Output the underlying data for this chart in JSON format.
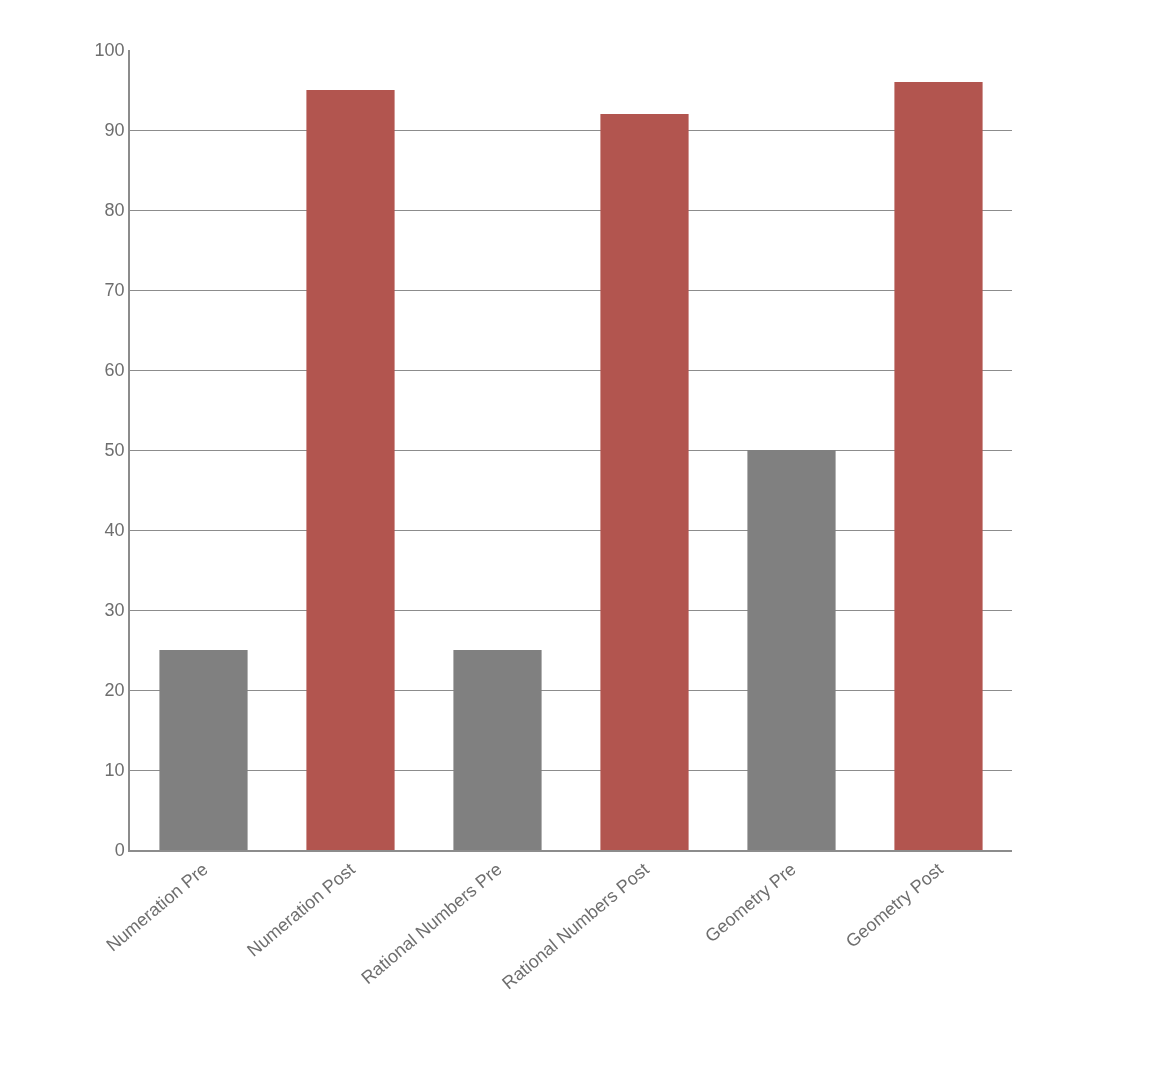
{
  "chart_data": {
    "type": "bar",
    "categories": [
      "Numeration Pre",
      "Numeration Post",
      "Rational Numbers Pre",
      "Rational Numbers Post",
      "Geometry Pre",
      "Geometry Post"
    ],
    "values": [
      25,
      95,
      25,
      92,
      50,
      96
    ],
    "colors": [
      "#808080",
      "#b2554f",
      "#808080",
      "#b2554f",
      "#808080",
      "#b2554f"
    ],
    "ylim": [
      0,
      100
    ],
    "yticks": [
      0,
      10,
      20,
      30,
      40,
      50,
      60,
      70,
      80,
      90,
      100
    ],
    "grid": "y"
  }
}
